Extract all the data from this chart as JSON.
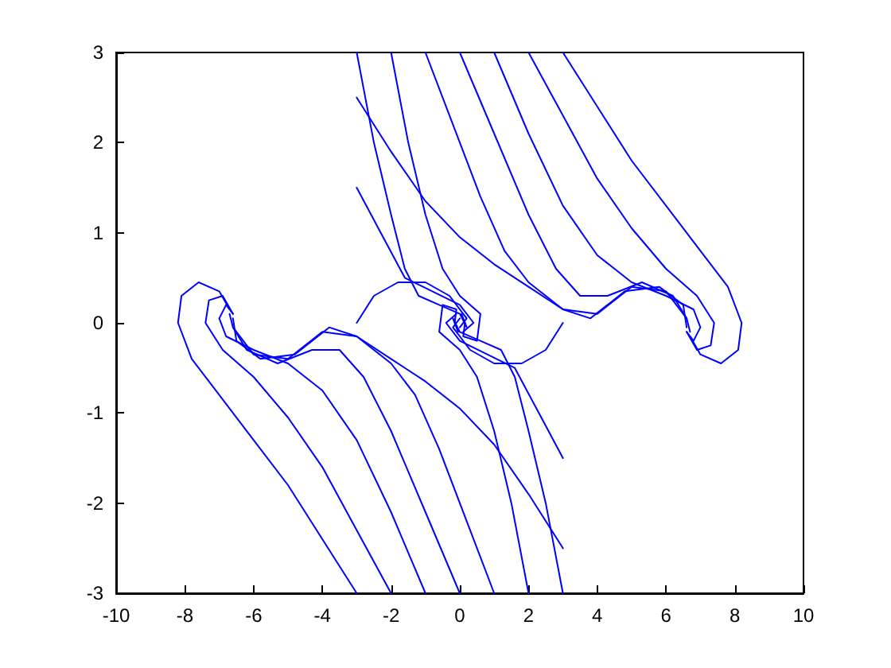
{
  "chart_data": {
    "type": "line",
    "xlim": [
      -10,
      10
    ],
    "xticks": [
      -10,
      -8,
      -6,
      -4,
      -2,
      0,
      2,
      4,
      6,
      8,
      10
    ],
    "ylim": [
      -3,
      3
    ],
    "yticks": [
      -3,
      -2,
      -1,
      0,
      1,
      2,
      3
    ],
    "grid": false,
    "marker": "none",
    "line_style": "solid",
    "series": [
      {
        "color": "#0000ff",
        "x": [
          3,
          4,
          5,
          6,
          7,
          7.8,
          8.2,
          8.1,
          7.6,
          7,
          6.7
        ],
        "values": [
          3,
          2.4,
          1.8,
          1.3,
          0.8,
          0.4,
          0,
          -0.3,
          -0.45,
          -0.35,
          -0.15
        ]
      },
      {
        "color": "#0000ff",
        "x": [
          2,
          3,
          4,
          5,
          6,
          6.9,
          7.4,
          7.3,
          6.9,
          6.6
        ],
        "values": [
          3,
          2.3,
          1.6,
          1.05,
          0.6,
          0.3,
          0,
          -0.25,
          -0.3,
          -0.1
        ]
      },
      {
        "color": "#0000ff",
        "x": [
          1,
          2,
          3,
          4,
          5,
          6,
          6.8,
          7,
          6.8,
          6.6
        ],
        "values": [
          3,
          2.1,
          1.3,
          0.75,
          0.45,
          0.3,
          0.15,
          -0.05,
          -0.2,
          -0.1
        ]
      },
      {
        "color": "#0000ff",
        "x": [
          0,
          1,
          2,
          2.8,
          3.5,
          4.3,
          5.3,
          6.2,
          6.6,
          6.7
        ],
        "values": [
          3,
          2.1,
          1.2,
          0.6,
          0.3,
          0.3,
          0.45,
          0.3,
          0.05,
          -0.1
        ]
      },
      {
        "color": "#0000ff",
        "x": [
          -1,
          -0.2,
          0.6,
          1.3,
          2,
          3,
          3.8,
          4.8,
          5.8,
          6.5,
          6.6
        ],
        "values": [
          3,
          2.2,
          1.4,
          0.8,
          0.45,
          0.15,
          0.05,
          0.35,
          0.4,
          0.2,
          -0.05
        ]
      },
      {
        "color": "#0000ff",
        "x": [
          -3,
          -2,
          -1,
          0,
          1,
          2,
          3,
          4,
          5,
          6,
          6.6
        ],
        "values": [
          2.5,
          1.9,
          1.35,
          0.95,
          0.65,
          0.4,
          0.15,
          0.1,
          0.4,
          0.35,
          0.05
        ]
      },
      {
        "color": "#0000ff",
        "x": [
          -2,
          -1.5,
          -1,
          -0.5,
          0,
          0.6,
          0.5,
          0.1,
          0.15
        ],
        "values": [
          3,
          2,
          1.2,
          0.6,
          0.3,
          0.1,
          -0.2,
          -0.15,
          0
        ]
      },
      {
        "color": "#0000ff",
        "x": [
          -3,
          -2.5,
          -2,
          -1.6,
          -1.2,
          -0.6,
          0,
          0.2,
          0.05
        ],
        "values": [
          3,
          2,
          1.2,
          0.6,
          0.3,
          0.2,
          0.1,
          -0.05,
          0.1
        ]
      },
      {
        "color": "#0000ff",
        "x": [
          -3,
          -2.3,
          -1.6,
          -0.8,
          0,
          0.4,
          0.1
        ],
        "values": [
          1.5,
          1,
          0.5,
          0.35,
          0.2,
          0,
          -0.1
        ]
      },
      {
        "color": "#0000ff",
        "x": [
          -3,
          -2.5,
          -1.8,
          -1,
          -0.3,
          0.2,
          0
        ],
        "values": [
          0,
          0.3,
          0.45,
          0.45,
          0.3,
          0.05,
          -0.05
        ]
      },
      {
        "color": "#0000ff",
        "x": [
          -3,
          -4,
          -5,
          -6,
          -7,
          -7.8,
          -8.2,
          -8.1,
          -7.6,
          -7,
          -6.7
        ],
        "values": [
          -3,
          -2.4,
          -1.8,
          -1.3,
          -0.8,
          -0.4,
          0,
          0.3,
          0.45,
          0.35,
          0.15
        ]
      },
      {
        "color": "#0000ff",
        "x": [
          -2,
          -3,
          -4,
          -5,
          -6,
          -6.9,
          -7.4,
          -7.3,
          -6.9,
          -6.6
        ],
        "values": [
          -3,
          -2.3,
          -1.6,
          -1.05,
          -0.6,
          -0.3,
          0,
          0.25,
          0.3,
          0.1
        ]
      },
      {
        "color": "#0000ff",
        "x": [
          -1,
          -2,
          -3,
          -4,
          -5,
          -6,
          -6.8,
          -7,
          -6.8,
          -6.6
        ],
        "values": [
          -3,
          -2.1,
          -1.3,
          -0.75,
          -0.45,
          -0.3,
          -0.15,
          0.05,
          0.2,
          0.1
        ]
      },
      {
        "color": "#0000ff",
        "x": [
          0,
          -1,
          -2,
          -2.8,
          -3.5,
          -4.3,
          -5.3,
          -6.2,
          -6.6,
          -6.7
        ],
        "values": [
          -3,
          -2.1,
          -1.2,
          -0.6,
          -0.3,
          -0.3,
          -0.45,
          -0.3,
          -0.05,
          0.1
        ]
      },
      {
        "color": "#0000ff",
        "x": [
          1,
          0.2,
          -0.6,
          -1.3,
          -2,
          -3,
          -3.8,
          -4.8,
          -5.8,
          -6.5,
          -6.6
        ],
        "values": [
          -3,
          -2.2,
          -1.4,
          -0.8,
          -0.45,
          -0.15,
          -0.05,
          -0.35,
          -0.4,
          -0.2,
          0.05
        ]
      },
      {
        "color": "#0000ff",
        "x": [
          3,
          2,
          1,
          0,
          -1,
          -2,
          -3,
          -4,
          -5,
          -6,
          -6.6
        ],
        "values": [
          -2.5,
          -1.9,
          -1.35,
          -0.95,
          -0.65,
          -0.4,
          -0.15,
          -0.1,
          -0.4,
          -0.35,
          -0.05
        ]
      },
      {
        "color": "#0000ff",
        "x": [
          2,
          1.5,
          1,
          0.5,
          0,
          -0.6,
          -0.5,
          -0.1,
          -0.15
        ],
        "values": [
          -3,
          -2,
          -1.2,
          -0.6,
          -0.3,
          -0.1,
          0.2,
          0.15,
          0
        ]
      },
      {
        "color": "#0000ff",
        "x": [
          3,
          2.5,
          2,
          1.6,
          1.2,
          0.6,
          0,
          -0.2,
          -0.05
        ],
        "values": [
          -3,
          -2,
          -1.2,
          -0.6,
          -0.3,
          -0.2,
          -0.1,
          0.05,
          -0.1
        ]
      },
      {
        "color": "#0000ff",
        "x": [
          3,
          2.3,
          1.6,
          0.8,
          0,
          -0.4,
          -0.1
        ],
        "values": [
          -1.5,
          -1,
          -0.5,
          -0.35,
          -0.2,
          0,
          0.1
        ]
      },
      {
        "color": "#0000ff",
        "x": [
          3,
          2.5,
          1.8,
          1,
          0.3,
          -0.2,
          0
        ],
        "values": [
          0,
          -0.3,
          -0.45,
          -0.45,
          -0.3,
          -0.05,
          0.05
        ]
      }
    ]
  }
}
